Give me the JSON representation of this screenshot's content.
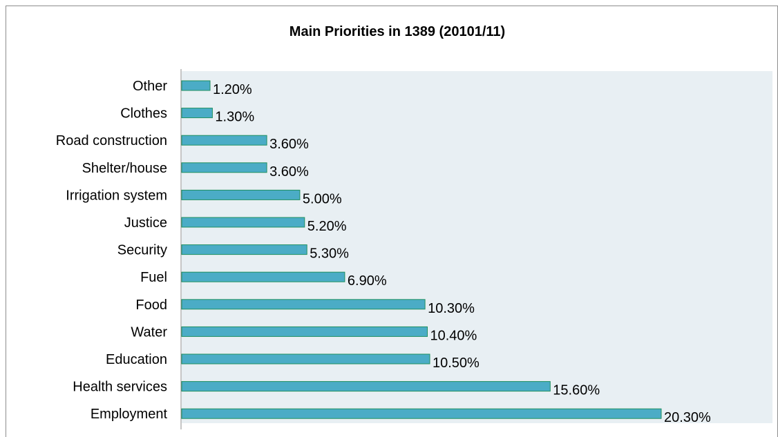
{
  "chart_data": {
    "type": "bar",
    "orientation": "horizontal",
    "title": "Main Priorities in 1389 (20101/11)",
    "categories": [
      "Other",
      "Clothes",
      "Road construction",
      "Shelter/house",
      "Irrigation system",
      "Justice",
      "Security",
      "Fuel",
      "Food",
      "Water",
      "Education",
      "Health services",
      "Employment"
    ],
    "values": [
      1.2,
      1.3,
      3.6,
      3.6,
      5.0,
      5.2,
      5.3,
      6.9,
      10.3,
      10.4,
      10.5,
      15.6,
      20.3
    ],
    "value_labels": [
      "1.20%",
      "1.30%",
      "3.60%",
      "3.60%",
      "5.00%",
      "5.20%",
      "5.30%",
      "6.90%",
      "10.30%",
      "10.40%",
      "10.50%",
      "15.60%",
      "20.30%"
    ],
    "xlim": [
      0,
      24
    ],
    "grid": false,
    "legend": "none",
    "colors": {
      "bar_fill": "#4bacc6",
      "bar_stroke": "#1f8f5f",
      "plot_background": "#e8eff3",
      "axis": "#8c8c8c"
    }
  }
}
